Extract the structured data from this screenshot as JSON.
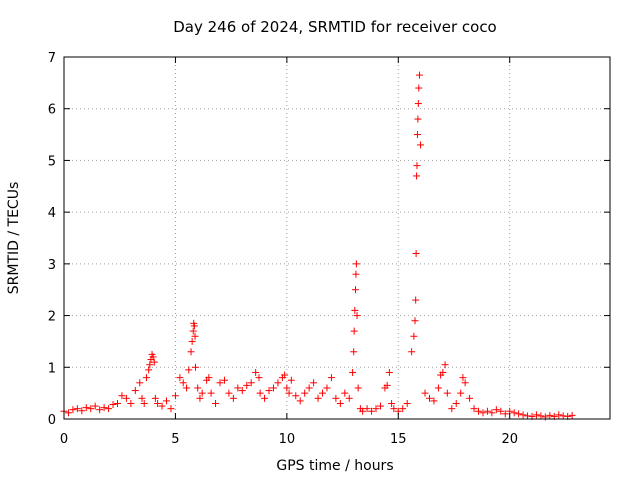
{
  "chart_data": {
    "type": "scatter",
    "title": "Day 246 of 2024, SRMTID for receiver coco",
    "xlabel": "GPS time / hours",
    "ylabel": "SRMTID / TECUs",
    "xlim": [
      0,
      24.5
    ],
    "ylim": [
      0,
      7
    ],
    "x_ticks": [
      0,
      5,
      10,
      15,
      20
    ],
    "y_ticks": [
      0,
      1,
      2,
      3,
      4,
      5,
      6,
      7
    ],
    "x_tick_labels": [
      "0",
      "5",
      "10",
      "15",
      "20"
    ],
    "y_tick_labels": [
      "0",
      "1",
      "2",
      "3",
      "4",
      "5",
      "6",
      "7"
    ],
    "grid": true,
    "marker": "+",
    "series": [
      {
        "name": "SRMTID",
        "color": "#ff0000",
        "x": [
          0.0,
          0.2,
          0.4,
          0.6,
          0.8,
          1.0,
          1.2,
          1.4,
          1.6,
          1.8,
          2.0,
          2.2,
          2.4,
          2.6,
          2.8,
          3.0,
          3.2,
          3.4,
          3.5,
          3.6,
          3.7,
          3.8,
          3.85,
          3.9,
          3.95,
          4.0,
          4.05,
          4.1,
          4.2,
          4.4,
          4.6,
          4.8,
          5.0,
          5.2,
          5.35,
          5.5,
          5.6,
          5.7,
          5.75,
          5.8,
          5.82,
          5.85,
          5.88,
          5.9,
          6.0,
          6.1,
          6.2,
          6.4,
          6.5,
          6.6,
          6.8,
          7.0,
          7.2,
          7.4,
          7.6,
          7.8,
          8.0,
          8.2,
          8.4,
          8.6,
          8.75,
          8.8,
          9.0,
          9.2,
          9.4,
          9.6,
          9.8,
          9.9,
          10.0,
          10.1,
          10.2,
          10.4,
          10.6,
          10.8,
          11.0,
          11.2,
          11.4,
          11.6,
          11.8,
          12.0,
          12.2,
          12.4,
          12.6,
          12.8,
          12.95,
          13.0,
          13.02,
          13.05,
          13.08,
          13.1,
          13.12,
          13.15,
          13.2,
          13.3,
          13.4,
          13.6,
          13.8,
          14.0,
          14.2,
          14.4,
          14.5,
          14.6,
          14.7,
          14.8,
          15.0,
          15.2,
          15.4,
          15.6,
          15.7,
          15.75,
          15.78,
          15.8,
          15.82,
          15.84,
          15.86,
          15.88,
          15.9,
          15.92,
          15.95,
          16.0,
          16.2,
          16.4,
          16.6,
          16.8,
          16.9,
          17.0,
          17.1,
          17.2,
          17.4,
          17.6,
          17.8,
          17.9,
          18.0,
          18.2,
          18.4,
          18.6,
          18.8,
          19.0,
          19.2,
          19.4,
          19.6,
          19.8,
          20.0,
          20.2,
          20.4,
          20.6,
          20.8,
          21.0,
          21.2,
          21.4,
          21.6,
          21.8,
          22.0,
          22.2,
          22.4,
          22.6,
          22.8
        ],
        "y": [
          0.15,
          0.12,
          0.18,
          0.2,
          0.16,
          0.22,
          0.2,
          0.25,
          0.18,
          0.22,
          0.2,
          0.28,
          0.3,
          0.45,
          0.4,
          0.3,
          0.55,
          0.7,
          0.4,
          0.3,
          0.8,
          0.95,
          1.05,
          1.15,
          1.25,
          1.2,
          1.1,
          0.4,
          0.3,
          0.25,
          0.35,
          0.2,
          0.45,
          0.8,
          0.7,
          0.6,
          0.95,
          1.3,
          1.5,
          1.7,
          1.85,
          1.8,
          1.6,
          1.0,
          0.6,
          0.4,
          0.5,
          0.75,
          0.8,
          0.5,
          0.3,
          0.7,
          0.75,
          0.5,
          0.4,
          0.6,
          0.55,
          0.65,
          0.7,
          0.9,
          0.8,
          0.5,
          0.4,
          0.55,
          0.6,
          0.7,
          0.8,
          0.85,
          0.6,
          0.5,
          0.75,
          0.45,
          0.35,
          0.5,
          0.6,
          0.7,
          0.4,
          0.5,
          0.6,
          0.8,
          0.4,
          0.3,
          0.5,
          0.4,
          0.9,
          1.3,
          1.7,
          2.1,
          2.5,
          2.8,
          3.0,
          2.0,
          0.6,
          0.2,
          0.15,
          0.2,
          0.15,
          0.2,
          0.25,
          0.6,
          0.65,
          0.9,
          0.3,
          0.2,
          0.15,
          0.2,
          0.3,
          1.3,
          1.6,
          1.9,
          2.3,
          3.2,
          4.7,
          4.9,
          5.5,
          5.8,
          6.1,
          6.4,
          6.65,
          5.3,
          0.5,
          0.4,
          0.35,
          0.6,
          0.85,
          0.9,
          1.05,
          0.5,
          0.2,
          0.3,
          0.5,
          0.8,
          0.7,
          0.4,
          0.2,
          0.15,
          0.12,
          0.15,
          0.12,
          0.18,
          0.15,
          0.1,
          0.15,
          0.12,
          0.1,
          0.08,
          0.06,
          0.05,
          0.08,
          0.06,
          0.04,
          0.07,
          0.05,
          0.08,
          0.06,
          0.05,
          0.07
        ]
      }
    ]
  }
}
